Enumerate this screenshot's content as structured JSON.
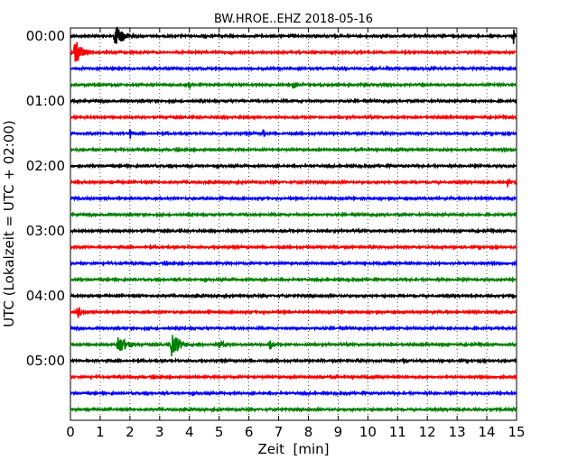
{
  "chart_data": {
    "type": "line",
    "title": "BW.HROE..EHZ 2018-05-16",
    "xlabel": "Zeit  [min]",
    "ylabel": "UTC (Lokalzeit = UTC + 02:00)",
    "xlim": [
      0,
      15
    ],
    "x_ticks": [
      "0",
      "1",
      "2",
      "3",
      "4",
      "5",
      "6",
      "7",
      "8",
      "9",
      "10",
      "11",
      "12",
      "13",
      "14",
      "15"
    ],
    "y_ticks": [
      "00:00",
      "01:00",
      "02:00",
      "03:00",
      "04:00",
      "05:00"
    ],
    "x_grid": "dotted vertical lines at each minute",
    "trace_colors": [
      "#000000",
      "#ff0000",
      "#0000ff",
      "#008000"
    ],
    "traces": [
      {
        "start": "00:00",
        "events": [
          {
            "t": 1.5,
            "amp": 1.3,
            "dur": 0.9
          },
          {
            "t": 14.9,
            "amp": 0.9,
            "dur": 0.15
          }
        ]
      },
      {
        "start": "00:15",
        "events": [
          {
            "t": 0.15,
            "amp": 1.5,
            "dur": 0.7
          }
        ]
      },
      {
        "start": "00:30",
        "events": [
          {
            "t": 2.8,
            "amp": 0.3,
            "dur": 0.1
          }
        ]
      },
      {
        "start": "00:45",
        "events": [
          {
            "t": 4.0,
            "amp": 0.4,
            "dur": 0.2
          },
          {
            "t": 7.5,
            "amp": 0.7,
            "dur": 0.3
          }
        ]
      },
      {
        "start": "01:00",
        "events": []
      },
      {
        "start": "01:15",
        "events": [
          {
            "t": 5.5,
            "amp": 0.2,
            "dur": 0.1
          }
        ]
      },
      {
        "start": "01:30",
        "events": [
          {
            "t": 2.0,
            "amp": 0.8,
            "dur": 0.1
          },
          {
            "t": 6.5,
            "amp": 0.8,
            "dur": 0.1
          }
        ]
      },
      {
        "start": "01:45",
        "events": []
      },
      {
        "start": "02:00",
        "events": []
      },
      {
        "start": "02:15",
        "events": [
          {
            "t": 14.7,
            "amp": 0.55,
            "dur": 0.3
          }
        ]
      },
      {
        "start": "02:30",
        "events": []
      },
      {
        "start": "02:45",
        "events": []
      },
      {
        "start": "03:00",
        "events": []
      },
      {
        "start": "03:15",
        "events": [
          {
            "t": 12.5,
            "amp": 0.25,
            "dur": 0.2
          }
        ]
      },
      {
        "start": "03:30",
        "events": []
      },
      {
        "start": "03:45",
        "events": []
      },
      {
        "start": "04:00",
        "events": [
          {
            "t": 14.9,
            "amp": 0.2,
            "dur": 0.1
          }
        ]
      },
      {
        "start": "04:15",
        "events": [
          {
            "t": 0.25,
            "amp": 0.7,
            "dur": 0.45
          }
        ]
      },
      {
        "start": "04:30",
        "events": []
      },
      {
        "start": "04:45",
        "events": [
          {
            "t": 1.6,
            "amp": 1.2,
            "dur": 0.8
          },
          {
            "t": 3.4,
            "amp": 1.5,
            "dur": 0.8
          },
          {
            "t": 5.0,
            "amp": 0.5,
            "dur": 0.6
          },
          {
            "t": 6.7,
            "amp": 0.6,
            "dur": 0.4
          }
        ]
      },
      {
        "start": "05:00",
        "events": [
          {
            "t": 11.2,
            "amp": 0.3,
            "dur": 0.4
          }
        ]
      },
      {
        "start": "05:15",
        "events": []
      },
      {
        "start": "05:30",
        "events": [
          {
            "t": 8.5,
            "amp": 0.2,
            "dur": 0.2
          }
        ]
      },
      {
        "start": "05:45",
        "events": []
      }
    ]
  }
}
